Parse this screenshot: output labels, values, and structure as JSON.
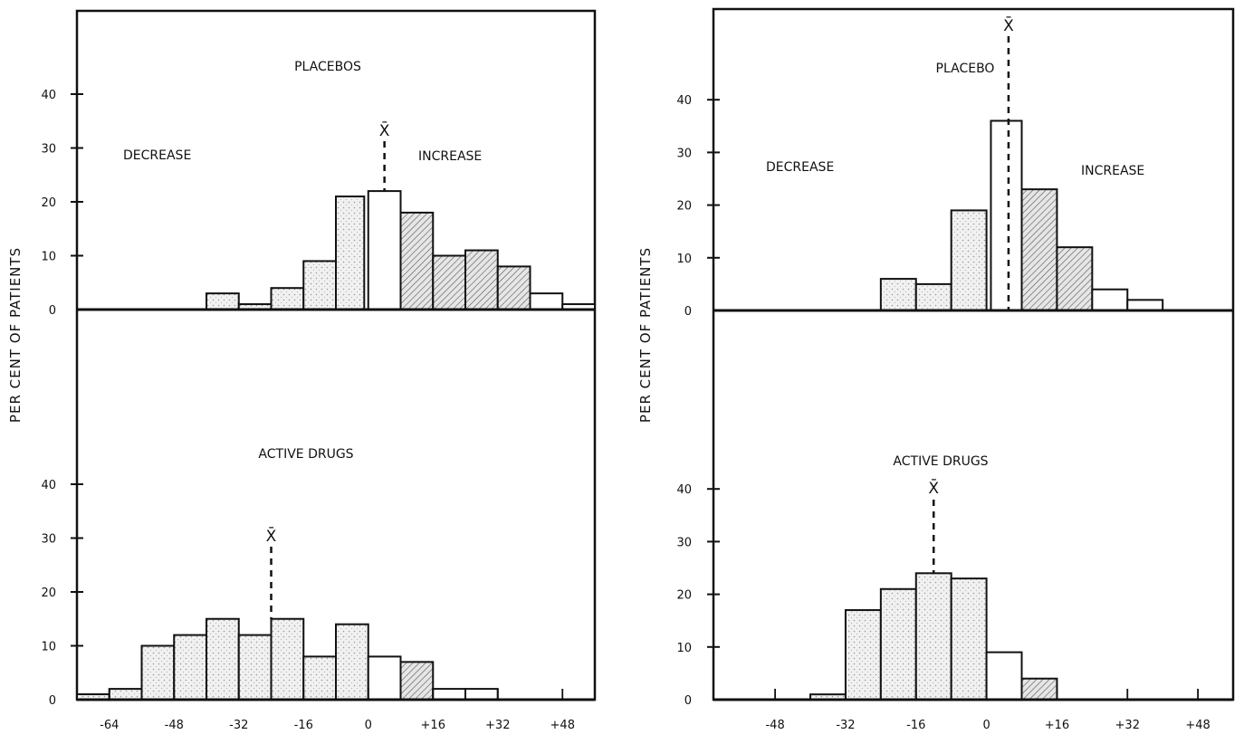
{
  "chart_data": [
    {
      "type": "bar",
      "panel": "top-left",
      "title": "PLACEBOS",
      "ylabel": "PER CENT OF PATIENTS",
      "xlabel": "",
      "annotations": [
        "DECREASE",
        "INCREASE"
      ],
      "mean_label": "X̄",
      "mean_x": 4,
      "xlim": [
        -72,
        56
      ],
      "ylim": [
        0,
        46
      ],
      "y_ticks": [
        0,
        10,
        20,
        30,
        40
      ],
      "bins": [
        {
          "x0": -40,
          "x1": -32,
          "value": 3
        },
        {
          "x0": -32,
          "x1": -24,
          "value": 1
        },
        {
          "x0": -24,
          "x1": -16,
          "value": 4
        },
        {
          "x0": -16,
          "x1": -8,
          "value": 9
        },
        {
          "x0": -8,
          "x1": -1,
          "value": 21
        },
        {
          "x0": 0,
          "x1": 8,
          "value": 22
        },
        {
          "x0": 8,
          "x1": 16,
          "value": 18,
          "hatched": true
        },
        {
          "x0": 16,
          "x1": 24,
          "value": 10,
          "hatched": true
        },
        {
          "x0": 24,
          "x1": 32,
          "value": 11,
          "hatched": true
        },
        {
          "x0": 32,
          "x1": 40,
          "value": 8,
          "hatched": true
        },
        {
          "x0": 40,
          "x1": 48,
          "value": 3
        },
        {
          "x0": 48,
          "x1": 56,
          "value": 1
        }
      ]
    },
    {
      "type": "bar",
      "panel": "bottom-left",
      "title": "ACTIVE DRUGS",
      "ylabel": "PER CENT OF PATIENTS",
      "mean_label": "X̄",
      "mean_x": -24,
      "xlim": [
        -72,
        56
      ],
      "ylim": [
        0,
        46
      ],
      "y_ticks": [
        0,
        10,
        20,
        30,
        40
      ],
      "x_ticks": [
        "-64",
        "-48",
        "-32",
        "-16",
        "0",
        "+16",
        "+32",
        "+48"
      ],
      "x_tick_values": [
        -64,
        -48,
        -32,
        -16,
        0,
        16,
        32,
        48
      ],
      "bins": [
        {
          "x0": -72,
          "x1": -64,
          "value": 1
        },
        {
          "x0": -64,
          "x1": -56,
          "value": 2
        },
        {
          "x0": -56,
          "x1": -48,
          "value": 10
        },
        {
          "x0": -48,
          "x1": -40,
          "value": 12
        },
        {
          "x0": -40,
          "x1": -32,
          "value": 15
        },
        {
          "x0": -32,
          "x1": -24,
          "value": 12
        },
        {
          "x0": -24,
          "x1": -16,
          "value": 15
        },
        {
          "x0": -16,
          "x1": -8,
          "value": 8
        },
        {
          "x0": -8,
          "x1": 0,
          "value": 14
        },
        {
          "x0": 0,
          "x1": 8,
          "value": 8
        },
        {
          "x0": 8,
          "x1": 16,
          "value": 7,
          "hatched": true
        },
        {
          "x0": 16,
          "x1": 24,
          "value": 2
        },
        {
          "x0": 24,
          "x1": 32,
          "value": 2
        }
      ]
    },
    {
      "type": "bar",
      "panel": "top-right",
      "title": "PLACEBO",
      "ylabel": "PER CENT OF PATIENTS",
      "annotations": [
        "DECREASE",
        "INCREASE"
      ],
      "mean_label": "X̄",
      "mean_x": 5,
      "xlim": [
        -62,
        56
      ],
      "ylim": [
        0,
        46
      ],
      "y_ticks": [
        0,
        10,
        20,
        30,
        40
      ],
      "bins": [
        {
          "x0": -24,
          "x1": -16,
          "value": 6
        },
        {
          "x0": -16,
          "x1": -8,
          "value": 5
        },
        {
          "x0": -8,
          "x1": 0,
          "value": 19
        },
        {
          "x0": 1,
          "x1": 8,
          "value": 36
        },
        {
          "x0": 8,
          "x1": 16,
          "value": 23,
          "hatched": true
        },
        {
          "x0": 16,
          "x1": 24,
          "value": 12,
          "hatched": true
        },
        {
          "x0": 24,
          "x1": 32,
          "value": 4
        },
        {
          "x0": 32,
          "x1": 40,
          "value": 2
        }
      ]
    },
    {
      "type": "bar",
      "panel": "bottom-right",
      "title": "ACTIVE DRUGS",
      "ylabel": "PER CENT OF PATIENTS",
      "mean_label": "X̄",
      "mean_x": -12,
      "xlim": [
        -62,
        56
      ],
      "ylim": [
        0,
        46
      ],
      "y_ticks": [
        0,
        10,
        20,
        30,
        40
      ],
      "x_ticks": [
        "-48",
        "-32",
        "-16",
        "0",
        "+16",
        "+32",
        "+48"
      ],
      "x_tick_values": [
        -48,
        -32,
        -16,
        0,
        16,
        32,
        48
      ],
      "bins": [
        {
          "x0": -40,
          "x1": -32,
          "value": 1
        },
        {
          "x0": -32,
          "x1": -24,
          "value": 17
        },
        {
          "x0": -24,
          "x1": -16,
          "value": 21
        },
        {
          "x0": -16,
          "x1": -8,
          "value": 24
        },
        {
          "x0": -8,
          "x1": 0,
          "value": 23
        },
        {
          "x0": 0,
          "x1": 8,
          "value": 9
        },
        {
          "x0": 8,
          "x1": 16,
          "value": 4,
          "hatched": true
        }
      ]
    }
  ]
}
